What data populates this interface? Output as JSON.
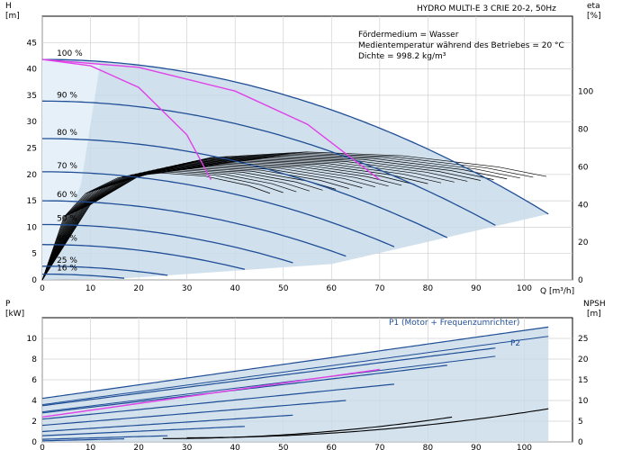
{
  "chart_data": [
    {
      "type": "line",
      "title": "HYDRO MULTI-E 3 CRIE 20-2, 50Hz",
      "annotations": [
        "Fördermedium = Wasser",
        "Medientemperatur während des Betriebes = 20 °C",
        "Dichte = 998.2 kg/m³"
      ],
      "xlabel": "Q [m³/h]",
      "ylabel_left": [
        "H",
        "[m]"
      ],
      "ylabel_right": [
        "eta",
        "[%]"
      ],
      "xlim": [
        0,
        110
      ],
      "ylim_left": [
        0,
        50
      ],
      "ylim_right": [
        0,
        140
      ],
      "x_ticks": [
        "0",
        "10",
        "20",
        "30",
        "40",
        "50",
        "60",
        "70",
        "80",
        "90",
        "100"
      ],
      "y_ticks_left": [
        "0",
        "5",
        "10",
        "15",
        "20",
        "25",
        "30",
        "35",
        "40",
        "45"
      ],
      "y_ticks_right": [
        "0",
        "20",
        "40",
        "60",
        "80",
        "100"
      ],
      "grid": true,
      "head_curves": [
        {
          "name": "100 %",
          "q_max": 105,
          "h0": 41.8,
          "h_end": 12.5
        },
        {
          "name": "90 %",
          "q_max": 94.5,
          "h0": 33.9,
          "h_end": 10.1
        },
        {
          "name": "80 %",
          "q_max": 84,
          "h0": 26.8,
          "h_end": 8.0
        },
        {
          "name": "70 %",
          "q_max": 73.5,
          "h0": 20.5,
          "h_end": 6.1
        },
        {
          "name": "60 %",
          "q_max": 63,
          "h0": 15.0,
          "h_end": 4.5
        },
        {
          "name": "50 %",
          "q_max": 52.5,
          "h0": 10.5,
          "h_end": 3.1
        },
        {
          "name": "40 %",
          "q_max": 42,
          "h0": 6.7,
          "h_end": 2.0
        },
        {
          "name": "25 %",
          "q_max": 26.5,
          "h0": 2.6,
          "h_end": 0.8
        },
        {
          "name": "16 %",
          "q_max": 17,
          "h0": 1.1,
          "h_end": 0.3
        }
      ],
      "duty_curves": [
        {
          "points": [
            [
              0,
              41.8
            ],
            [
              10,
              40.6
            ],
            [
              20,
              36.5
            ],
            [
              30,
              27.5
            ],
            [
              35,
              19
            ]
          ]
        },
        {
          "points": [
            [
              0,
              41.8
            ],
            [
              20,
              40.3
            ],
            [
              40,
              35.8
            ],
            [
              55,
              29.5
            ],
            [
              70,
              19
            ]
          ]
        }
      ],
      "efficiency_envelope": [
        [
          0,
          0
        ],
        [
          10,
          40
        ],
        [
          20,
          55
        ],
        [
          35,
          65
        ],
        [
          55,
          68
        ],
        [
          75,
          66
        ],
        [
          95,
          60
        ],
        [
          105,
          55
        ]
      ]
    },
    {
      "type": "line",
      "xlim": [
        0,
        110
      ],
      "ylabel_left": [
        "P",
        "[kW]"
      ],
      "ylabel_right": [
        "NPSH",
        "[m]"
      ],
      "ylim_left": [
        0,
        12
      ],
      "ylim_right": [
        0,
        30
      ],
      "y_ticks_left": [
        "0",
        "2",
        "4",
        "6",
        "8",
        "10"
      ],
      "y_ticks_right": [
        "0",
        "5",
        "10",
        "15",
        "20",
        "25"
      ],
      "grid": true,
      "series_labels": [
        "P1 (Motor + Frequenzumrichter)",
        "P2"
      ],
      "p1_curves": [
        {
          "q_max": 105,
          "p0": 4.2,
          "p_end": 11.1
        },
        {
          "q_max": 94.5,
          "p0": 3.5,
          "p_end": 9.1
        },
        {
          "q_max": 84,
          "p0": 2.8,
          "p_end": 7.4
        },
        {
          "q_max": 73.5,
          "p0": 2.2,
          "p_end": 5.6
        },
        {
          "q_max": 63,
          "p0": 1.6,
          "p_end": 4.0
        },
        {
          "q_max": 52.5,
          "p0": 1.0,
          "p_end": 2.6
        },
        {
          "q_max": 42,
          "p0": 0.6,
          "p_end": 1.5
        },
        {
          "q_max": 26.5,
          "p0": 0.25,
          "p_end": 0.6
        },
        {
          "q_max": 17,
          "p0": 0.1,
          "p_end": 0.3
        }
      ],
      "p2_curves": [
        {
          "q_max": 105,
          "p0": 3.6,
          "p_end": 10.2
        },
        {
          "q_max": 94.5,
          "p0": 2.9,
          "p_end": 8.3
        }
      ],
      "npsh_curves": [
        {
          "q_min": 30,
          "q_max": 105,
          "n0": 1,
          "n_end": 8
        },
        {
          "q_min": 25,
          "q_max": 85,
          "n0": 0.8,
          "n_end": 6
        }
      ]
    }
  ],
  "colors": {
    "curve": "#1f4e96",
    "duty": "#e040e8",
    "area": "#c9dbea",
    "grid": "#d0d0d0"
  }
}
